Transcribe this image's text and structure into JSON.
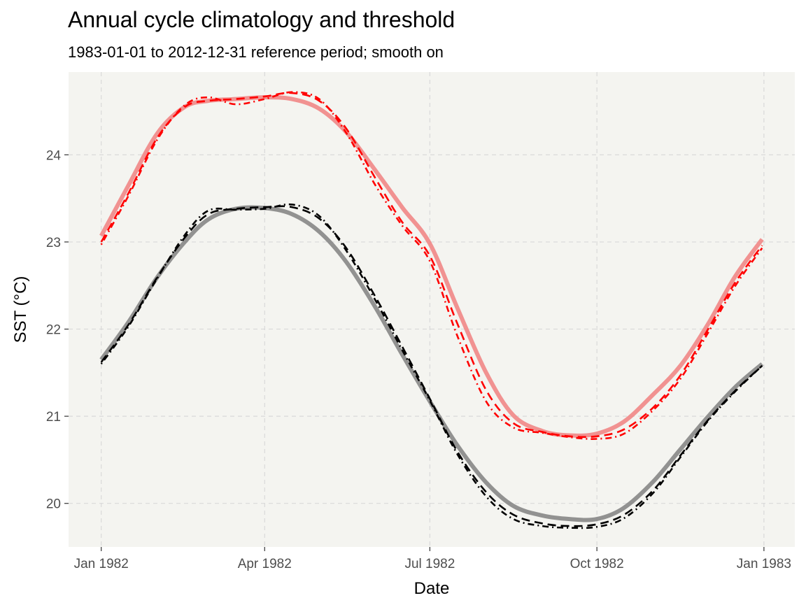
{
  "chart_data": {
    "type": "line",
    "title": "Annual cycle climatology and threshold",
    "subtitle": "1983-01-01 to 2012-12-31 reference period; smooth on",
    "xlabel": "Date",
    "ylabel": "SST (°C)",
    "xlim": [
      "1981-12-14",
      "1983-01-18"
    ],
    "ylim": [
      19.5,
      24.95
    ],
    "x_ticks": [
      "1982-01-01",
      "1982-04-01",
      "1982-07-01",
      "1982-10-01",
      "1983-01-01"
    ],
    "x_tick_labels": [
      "Jan 1982",
      "Apr 1982",
      "Jul 1982",
      "Oct 1982",
      "Jan 1983"
    ],
    "y_ticks": [
      20,
      21,
      22,
      23,
      24
    ],
    "y_tick_labels": [
      "20",
      "21",
      "22",
      "23",
      "24"
    ],
    "grid": true,
    "legend": "none",
    "colors": {
      "panel_bg": "#f4f4f0",
      "grid": "#d9d9d9",
      "threshold": "#f08080",
      "threshold_alt": "#ff0000",
      "climatology": "#808080",
      "climatology_alt": "#000000"
    },
    "series": [
      {
        "group": "threshold",
        "style": "solid-thick",
        "color": "#f08080",
        "x": [
          "1982-01-01",
          "1982-01-16",
          "1982-02-01",
          "1982-02-16",
          "1982-03-01",
          "1982-03-16",
          "1982-04-01",
          "1982-04-16",
          "1982-05-01",
          "1982-05-16",
          "1982-06-01",
          "1982-06-16",
          "1982-07-01",
          "1982-07-16",
          "1982-08-01",
          "1982-08-16",
          "1982-09-01",
          "1982-09-16",
          "1982-10-01",
          "1982-10-16",
          "1982-11-01",
          "1982-11-16",
          "1982-12-01",
          "1982-12-16",
          "1982-12-31"
        ],
        "y": [
          23.07,
          23.65,
          24.25,
          24.55,
          24.62,
          24.64,
          24.66,
          24.64,
          24.53,
          24.26,
          23.82,
          23.39,
          22.98,
          22.25,
          21.5,
          21.01,
          20.83,
          20.78,
          20.8,
          20.94,
          21.25,
          21.58,
          22.05,
          22.6,
          23.03
        ]
      },
      {
        "group": "threshold",
        "style": "dashed",
        "color": "#ff0000",
        "x": [
          "1982-01-01",
          "1982-01-16",
          "1982-02-01",
          "1982-02-16",
          "1982-03-01",
          "1982-03-16",
          "1982-04-01",
          "1982-04-16",
          "1982-05-01",
          "1982-05-16",
          "1982-06-01",
          "1982-06-16",
          "1982-07-01",
          "1982-07-16",
          "1982-08-01",
          "1982-08-16",
          "1982-09-01",
          "1982-09-16",
          "1982-10-01",
          "1982-10-16",
          "1982-11-01",
          "1982-11-16",
          "1982-12-01",
          "1982-12-16",
          "1982-12-31"
        ],
        "y": [
          23.0,
          23.56,
          24.2,
          24.55,
          24.62,
          24.64,
          24.67,
          24.71,
          24.62,
          24.3,
          23.73,
          23.22,
          22.84,
          22.07,
          21.3,
          20.92,
          20.82,
          20.77,
          20.77,
          20.85,
          21.1,
          21.47,
          21.99,
          22.53,
          22.96
        ]
      },
      {
        "group": "threshold",
        "style": "dotdash",
        "color": "#ff0000",
        "x": [
          "1982-01-01",
          "1982-01-16",
          "1982-02-01",
          "1982-02-16",
          "1982-03-01",
          "1982-03-16",
          "1982-04-01",
          "1982-04-16",
          "1982-05-01",
          "1982-05-16",
          "1982-06-01",
          "1982-06-16",
          "1982-07-01",
          "1982-07-16",
          "1982-08-01",
          "1982-08-16",
          "1982-09-01",
          "1982-09-16",
          "1982-10-01",
          "1982-10-16",
          "1982-11-01",
          "1982-11-16",
          "1982-12-01",
          "1982-12-16",
          "1982-12-31"
        ],
        "y": [
          22.97,
          23.53,
          24.18,
          24.57,
          24.66,
          24.58,
          24.64,
          24.72,
          24.64,
          24.25,
          23.65,
          23.18,
          22.78,
          21.93,
          21.17,
          20.87,
          20.81,
          20.76,
          20.74,
          20.8,
          21.07,
          21.43,
          21.95,
          22.49,
          22.93
        ]
      },
      {
        "group": "climatology",
        "style": "solid-thick",
        "color": "#808080",
        "x": [
          "1982-01-01",
          "1982-01-16",
          "1982-02-01",
          "1982-02-16",
          "1982-03-01",
          "1982-03-16",
          "1982-04-01",
          "1982-04-16",
          "1982-05-01",
          "1982-05-16",
          "1982-06-01",
          "1982-06-16",
          "1982-07-01",
          "1982-07-16",
          "1982-08-01",
          "1982-08-16",
          "1982-09-01",
          "1982-09-16",
          "1982-10-01",
          "1982-10-16",
          "1982-11-01",
          "1982-11-16",
          "1982-12-01",
          "1982-12-16",
          "1982-12-31"
        ],
        "y": [
          21.65,
          22.08,
          22.6,
          23.0,
          23.26,
          23.38,
          23.39,
          23.32,
          23.12,
          22.77,
          22.25,
          21.7,
          21.17,
          20.67,
          20.24,
          19.97,
          19.86,
          19.82,
          19.82,
          19.95,
          20.25,
          20.62,
          20.99,
          21.33,
          21.6
        ]
      },
      {
        "group": "climatology",
        "style": "dashed",
        "color": "#000000",
        "x": [
          "1982-01-01",
          "1982-01-16",
          "1982-02-01",
          "1982-02-16",
          "1982-03-01",
          "1982-03-16",
          "1982-04-01",
          "1982-04-16",
          "1982-05-01",
          "1982-05-16",
          "1982-06-01",
          "1982-06-16",
          "1982-07-01",
          "1982-07-16",
          "1982-08-01",
          "1982-08-16",
          "1982-09-01",
          "1982-09-16",
          "1982-10-01",
          "1982-10-16",
          "1982-11-01",
          "1982-11-16",
          "1982-12-01",
          "1982-12-16",
          "1982-12-31"
        ],
        "y": [
          21.62,
          22.05,
          22.6,
          23.05,
          23.32,
          23.38,
          23.4,
          23.4,
          23.27,
          22.93,
          22.37,
          21.79,
          21.2,
          20.6,
          20.13,
          19.87,
          19.77,
          19.74,
          19.76,
          19.87,
          20.15,
          20.55,
          20.95,
          21.29,
          21.58
        ]
      },
      {
        "group": "climatology",
        "style": "dotdash",
        "color": "#000000",
        "x": [
          "1982-01-01",
          "1982-01-16",
          "1982-02-01",
          "1982-02-16",
          "1982-03-01",
          "1982-03-16",
          "1982-04-01",
          "1982-04-16",
          "1982-05-01",
          "1982-05-16",
          "1982-06-01",
          "1982-06-16",
          "1982-07-01",
          "1982-07-16",
          "1982-08-01",
          "1982-08-16",
          "1982-09-01",
          "1982-09-16",
          "1982-10-01",
          "1982-10-16",
          "1982-11-01",
          "1982-11-16",
          "1982-12-01",
          "1982-12-16",
          "1982-12-31"
        ],
        "y": [
          21.6,
          22.03,
          22.59,
          23.08,
          23.36,
          23.37,
          23.38,
          23.43,
          23.3,
          22.9,
          22.33,
          21.75,
          21.18,
          20.57,
          20.08,
          19.82,
          19.74,
          19.72,
          19.73,
          19.83,
          20.12,
          20.53,
          20.94,
          21.28,
          21.58
        ]
      }
    ]
  }
}
